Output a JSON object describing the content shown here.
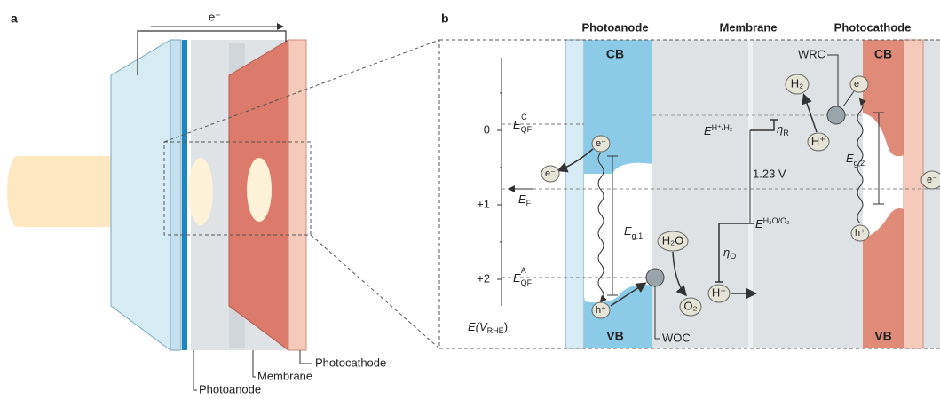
{
  "panel_a": {
    "label": "a",
    "electron": "e⁻",
    "photocathode": "Photocathode",
    "membrane": "Membrane",
    "photoanode": "Photoanode"
  },
  "panel_b": {
    "label": "b",
    "headers": [
      "Photoanode",
      "Membrane",
      "Photocathode"
    ],
    "anode_cb": "CB",
    "anode_vb": "VB",
    "cathode_cb": "CB",
    "cathode_vb": "VB",
    "ticks": [
      "0",
      "+1",
      "+2"
    ],
    "axis_title": {
      "main": "E(V",
      "sub": "RHE",
      "tail": ")"
    },
    "levels": [
      {
        "main": "E",
        "sub": "QF",
        "sup": "C"
      },
      {
        "main": "E",
        "sub": "F"
      },
      {
        "main": "E",
        "sub": "QF",
        "sup": "A"
      }
    ],
    "anode_gap": {
      "main": "E",
      "sub": "g,1"
    },
    "cathode_gap": {
      "main": "E",
      "sub": "g,2"
    },
    "anode_species": {
      "electron_cb": "e⁻",
      "electron_out": "e⁻",
      "hole": "h⁺",
      "water": "H₂O",
      "oxygen": "O₂",
      "proton": "H⁺",
      "catalyst": "WOC"
    },
    "cathode_species": {
      "electron_cb": "e⁻",
      "hole": "h⁺",
      "hydrogen": "H₂",
      "proton": "H⁺",
      "catalyst": "WRC",
      "electron_in": "e⁻"
    },
    "h_potential": {
      "main": "E",
      "sup": "H⁺/H₂"
    },
    "o_potential": {
      "main": "E",
      "sup": "H₂O/O₂"
    },
    "eta_r": {
      "main": "η",
      "sub": "R"
    },
    "eta_o": {
      "main": "η",
      "sub": "O"
    },
    "voltage": "1.23 V"
  }
}
